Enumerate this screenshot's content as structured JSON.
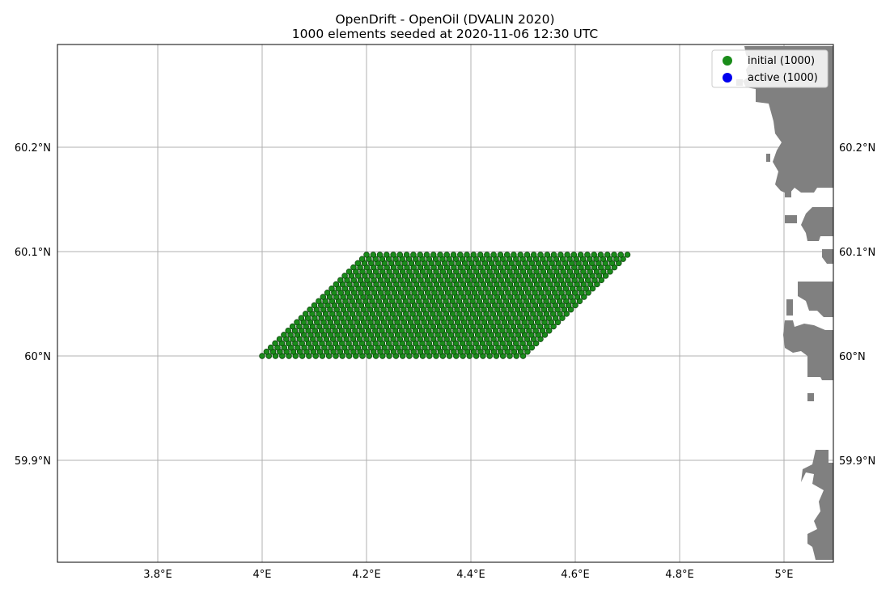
{
  "chart_data": {
    "type": "scatter",
    "title": "OpenDrift - OpenOil (DVALIN 2020)",
    "subtitle": "1000 elements seeded at 2020-11-06 12:30 UTC",
    "xlim": [
      3.61,
      5.1
    ],
    "ylim": [
      59.81,
      60.3
    ],
    "x_ticks": [
      {
        "value": 3.8,
        "label": "3.8°E"
      },
      {
        "value": 4.0,
        "label": "4°E"
      },
      {
        "value": 4.2,
        "label": "4.2°E"
      },
      {
        "value": 4.4,
        "label": "4.4°E"
      },
      {
        "value": 4.6,
        "label": "4.6°E"
      },
      {
        "value": 4.8,
        "label": "4.8°E"
      },
      {
        "value": 5.0,
        "label": "5°E"
      }
    ],
    "y_ticks": [
      {
        "value": 59.9,
        "label": "59.9°N"
      },
      {
        "value": 60.0,
        "label": "60°N"
      },
      {
        "value": 60.1,
        "label": "60.1°N"
      },
      {
        "value": 60.2,
        "label": "60.2°N"
      }
    ],
    "grid": true,
    "legend_position": "top-right",
    "series": [
      {
        "name": "initial (1000)",
        "color": "#1a8c1a",
        "distribution": "parallelogram",
        "corners_lon_lat": [
          [
            4.0,
            60.0
          ],
          [
            4.5,
            60.0
          ],
          [
            4.7,
            60.097
          ],
          [
            4.2,
            60.097
          ]
        ],
        "rows": 25,
        "cols": 40
      },
      {
        "name": "active (1000)",
        "color": "#0000ee"
      }
    ],
    "land_color": "#808080"
  }
}
